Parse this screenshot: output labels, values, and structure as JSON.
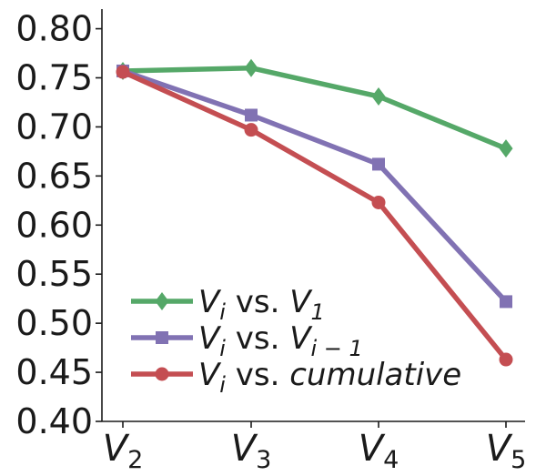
{
  "chart_data": {
    "type": "line",
    "title": "",
    "xlabel": "",
    "ylabel": "",
    "categories": [
      {
        "base": "V",
        "sub": "2"
      },
      {
        "base": "V",
        "sub": "3"
      },
      {
        "base": "V",
        "sub": "4"
      },
      {
        "base": "V",
        "sub": "5"
      }
    ],
    "ylim": [
      0.4,
      0.82
    ],
    "yticks": [
      "0.40",
      "0.45",
      "0.50",
      "0.55",
      "0.60",
      "0.65",
      "0.70",
      "0.75",
      "0.80"
    ],
    "grid": false,
    "legend_position": "bottom-left",
    "series": [
      {
        "name": "V_i vs. V_1",
        "legend": {
          "a": "V",
          "a_sub": "i",
          "mid": " vs. ",
          "b": "V",
          "b_sub": "1"
        },
        "values": [
          0.757,
          0.76,
          0.731,
          0.678
        ],
        "color": "#55a868",
        "marker": "diamond"
      },
      {
        "name": "V_i vs. V_{i-1}",
        "legend": {
          "a": "V",
          "a_sub": "i",
          "mid": " vs. ",
          "b": "V",
          "b_sub": "i − 1"
        },
        "values": [
          0.757,
          0.712,
          0.662,
          0.522
        ],
        "color": "#8172b3",
        "marker": "square"
      },
      {
        "name": "V_i vs. cumulative",
        "legend": {
          "a": "V",
          "a_sub": "i",
          "mid": " vs. ",
          "b": "cumulative",
          "b_sub": ""
        },
        "values": [
          0.756,
          0.697,
          0.623,
          0.463
        ],
        "color": "#c44e52",
        "marker": "circle"
      }
    ]
  }
}
